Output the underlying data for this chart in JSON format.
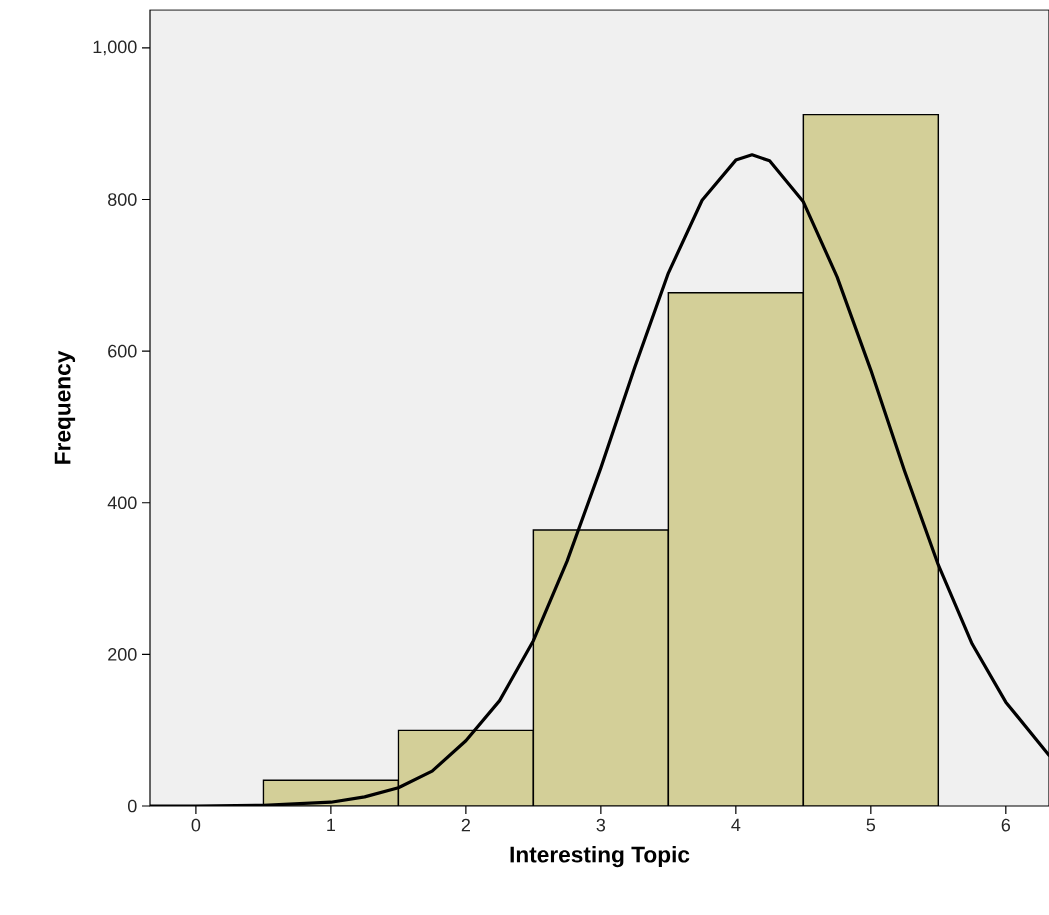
{
  "chart_data": {
    "type": "histogram",
    "xlabel": "Interesting Topic",
    "ylabel": "Frequency",
    "bins": [
      0.5,
      1.5,
      2.5,
      3.5,
      4.5,
      5.5
    ],
    "values": [
      34,
      100,
      364,
      677,
      912
    ],
    "color": "#d3cf98",
    "series": [
      {
        "type": "line",
        "color": "#000000",
        "x": [
          -0.34,
          0,
          0.5,
          1,
          1.25,
          1.5,
          1.75,
          2,
          2.25,
          2.5,
          2.75,
          3,
          3.25,
          3.5,
          3.75,
          4,
          4.12,
          4.25,
          4.5,
          4.75,
          5,
          5.25,
          5.5,
          5.75,
          6,
          6.32
        ],
        "values": [
          0,
          0,
          1,
          5,
          12,
          24,
          46,
          86,
          139,
          218,
          323,
          446,
          578,
          703,
          799,
          852,
          859,
          851,
          797,
          698,
          575,
          442,
          318,
          214,
          137,
          67
        ]
      }
    ],
    "xlim": [
      -0.34,
      6.32
    ],
    "ylim": [
      0,
      1050
    ],
    "xticks": [
      0,
      1,
      2,
      3,
      4,
      5,
      6
    ],
    "yticks": [
      0,
      200,
      400,
      600,
      800,
      {
        "value": 1000,
        "label": "1,000"
      }
    ]
  }
}
